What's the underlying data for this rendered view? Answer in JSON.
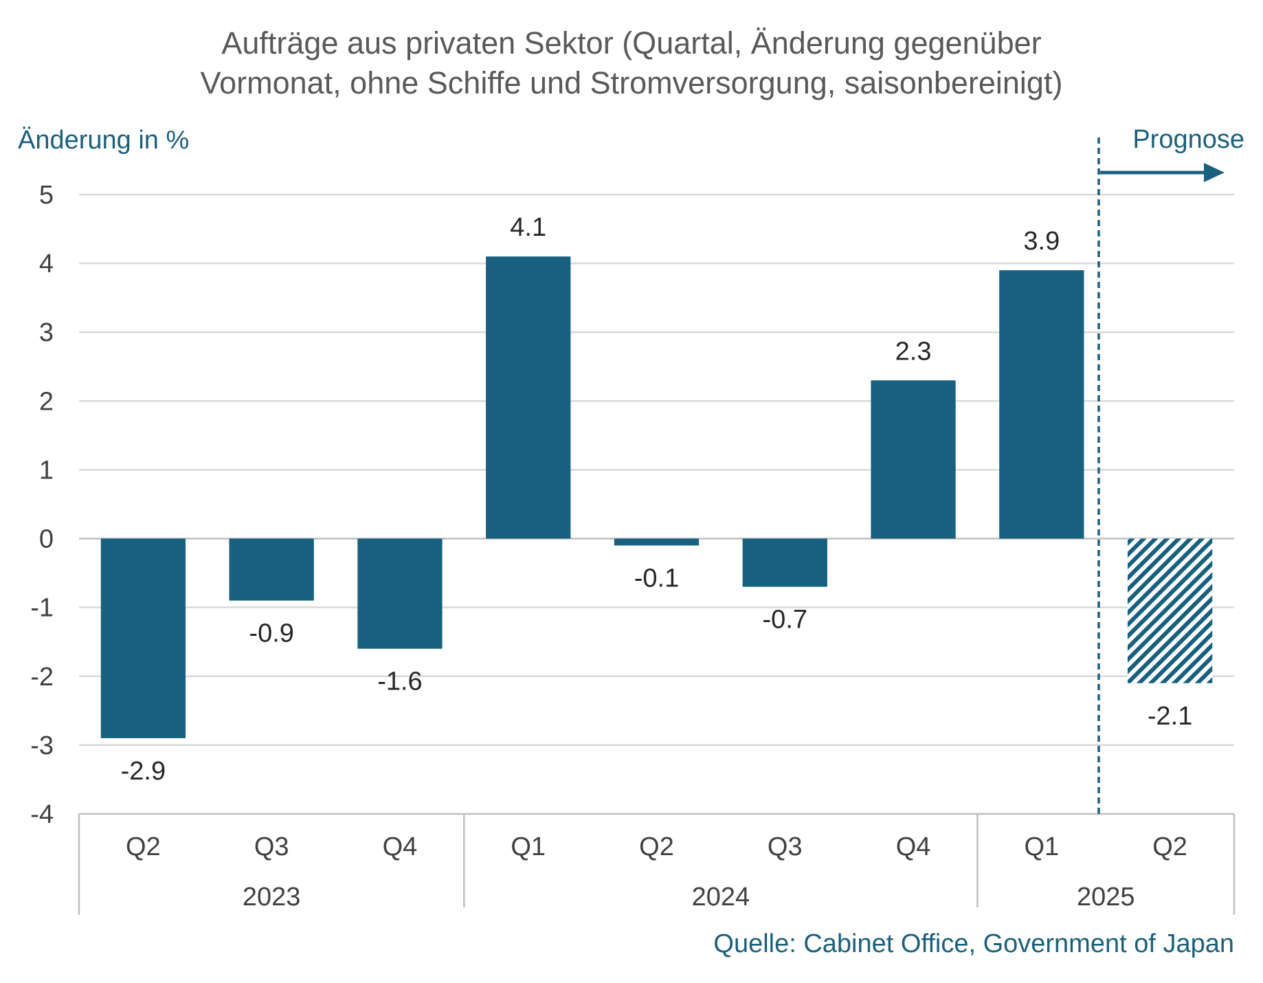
{
  "chart_data": {
    "type": "bar",
    "title_lines": [
      "Aufträge aus privaten Sektor (Quartal, Änderung gegenüber",
      "Vormonat, ohne Schiffe und Stromversorgung, saisonbereinigt)"
    ],
    "ylabel": "Änderung in %",
    "ylim": [
      -4,
      5
    ],
    "yticks": [
      "5",
      "4",
      "3",
      "2",
      "1",
      "0",
      "-1",
      "-2",
      "-3",
      "-4"
    ],
    "ytick_values": [
      5,
      4,
      3,
      2,
      1,
      0,
      -1,
      -2,
      -3,
      -4
    ],
    "grid": true,
    "categories": [
      "Q2",
      "Q3",
      "Q4",
      "Q1",
      "Q2",
      "Q3",
      "Q4",
      "Q1",
      "Q2"
    ],
    "years": [
      {
        "label": "2023",
        "count": 3
      },
      {
        "label": "2024",
        "count": 4
      },
      {
        "label": "2025",
        "count": 2
      }
    ],
    "values": [
      -2.9,
      -0.9,
      -1.6,
      4.1,
      -0.1,
      -0.7,
      2.3,
      3.9,
      -2.1
    ],
    "value_labels": [
      "-2.9",
      "-0.9",
      "-1.6",
      "4.1",
      "-0.1",
      "-0.7",
      "2.3",
      "3.9",
      "-2.1"
    ],
    "forecast_from_index": 8,
    "forecast_label": "Prognose",
    "source": "Quelle: Cabinet Office, Government of Japan"
  },
  "colors": {
    "bar": "#17607f",
    "forecast_bar": "#17607f",
    "grid": "#d9d9d9",
    "axis": "#bfbfbf",
    "accent": "#1a5f7e"
  }
}
